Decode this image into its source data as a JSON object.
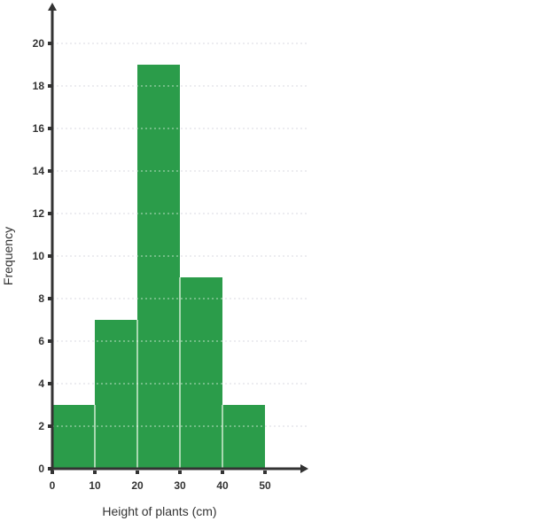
{
  "chart_data": {
    "type": "bar",
    "subtype": "histogram",
    "title": "",
    "xlabel": "Height of plants (cm)",
    "ylabel": "Frequency",
    "bins": [
      [
        0,
        10
      ],
      [
        10,
        20
      ],
      [
        20,
        30
      ],
      [
        30,
        40
      ],
      [
        40,
        50
      ]
    ],
    "values": [
      3,
      7,
      19,
      9,
      3
    ],
    "xticks": [
      "0",
      "10",
      "20",
      "30",
      "40",
      "50"
    ],
    "yticks": [
      "0",
      "2",
      "4",
      "6",
      "8",
      "10",
      "12",
      "14",
      "16",
      "18",
      "20"
    ],
    "xlim": [
      0,
      50
    ],
    "ylim": [
      0,
      20
    ],
    "grid": true,
    "bar_color": "#2b9c4a",
    "axis_color": "#333333"
  }
}
